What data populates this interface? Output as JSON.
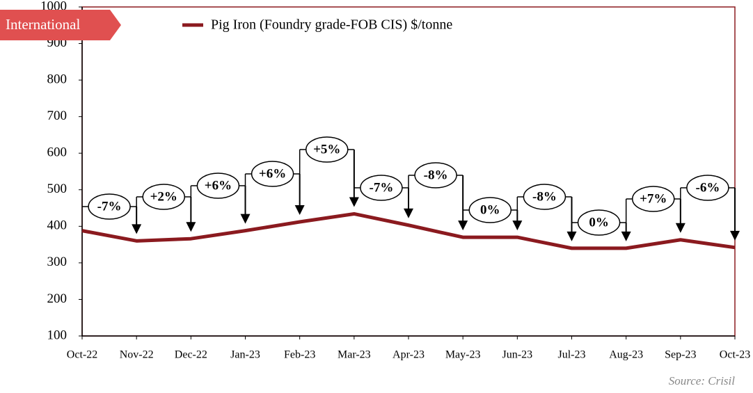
{
  "chart_data": {
    "type": "line",
    "tag": "International",
    "source": "Source: Crisil",
    "categories": [
      "Oct-22",
      "Nov-22",
      "Dec-22",
      "Jan-23",
      "Feb-23",
      "Mar-23",
      "Apr-23",
      "May-23",
      "Jun-23",
      "Jul-23",
      "Aug-23",
      "Sep-23",
      "Oct-23"
    ],
    "series": [
      {
        "name": "Pig Iron (Foundry grade-FOB CIS) $/tonne",
        "color": "#8b1a1f",
        "values": [
          388,
          360,
          366,
          388,
          412,
          434,
          403,
          370,
          370,
          340,
          340,
          363,
          342
        ]
      }
    ],
    "annotations": [
      "-7%",
      "+2%",
      "+6%",
      "+6%",
      "+5%",
      "-7%",
      "-8%",
      "0%",
      "-8%",
      "0%",
      "+7%",
      "-6%"
    ],
    "ylim": [
      100,
      1000
    ],
    "yticks": [
      100,
      200,
      300,
      400,
      500,
      600,
      700,
      800,
      900,
      1000
    ]
  }
}
